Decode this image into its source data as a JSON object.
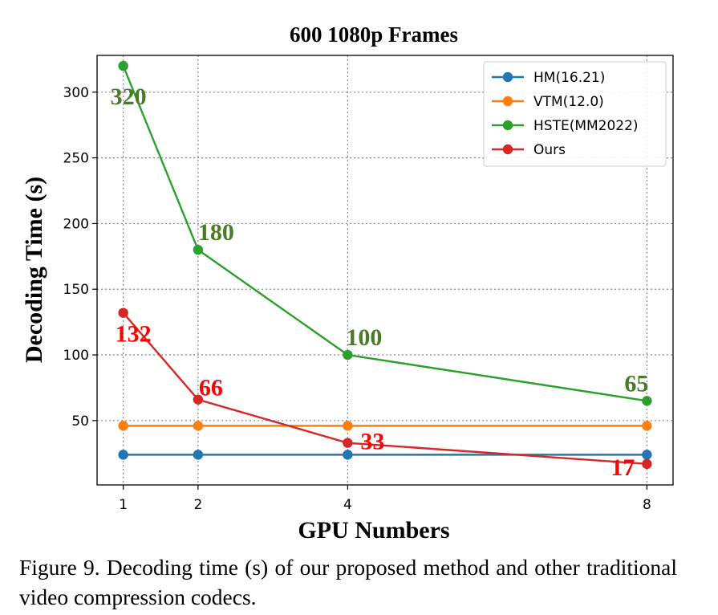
{
  "chart_data": {
    "type": "line",
    "title": "600 1080p Frames",
    "xlabel": "GPU Numbers",
    "ylabel": "Decoding Time (s)",
    "x": [
      1,
      2,
      4,
      8
    ],
    "x_ticks": [
      1,
      2,
      4,
      8
    ],
    "y_ticks": [
      50,
      100,
      150,
      200,
      250,
      300
    ],
    "xlim": [
      0.65,
      8.35
    ],
    "ylim": [
      1,
      328
    ],
    "grid": true,
    "legend_position": "top-right",
    "series": [
      {
        "name": "HM(16.21)",
        "color": "#1f77b4",
        "values": [
          24,
          24,
          24,
          24
        ]
      },
      {
        "name": "VTM(12.0)",
        "color": "#ff7f0e",
        "values": [
          46,
          46,
          46,
          46
        ]
      },
      {
        "name": "HSTE(MM2022)",
        "color": "#2ca02c",
        "values": [
          320,
          180,
          100,
          65
        ],
        "label_color": "#4a7a2a",
        "labels": [
          "320",
          "180",
          "100",
          "65"
        ]
      },
      {
        "name": "Ours",
        "color": "#d62728",
        "values": [
          132,
          66,
          33,
          17
        ],
        "label_color": "#ff0000",
        "labels": [
          "132",
          "66",
          "33",
          "17"
        ]
      }
    ]
  },
  "caption": "Figure 9. Decoding time (s) of our proposed method and other traditional video compression codecs."
}
